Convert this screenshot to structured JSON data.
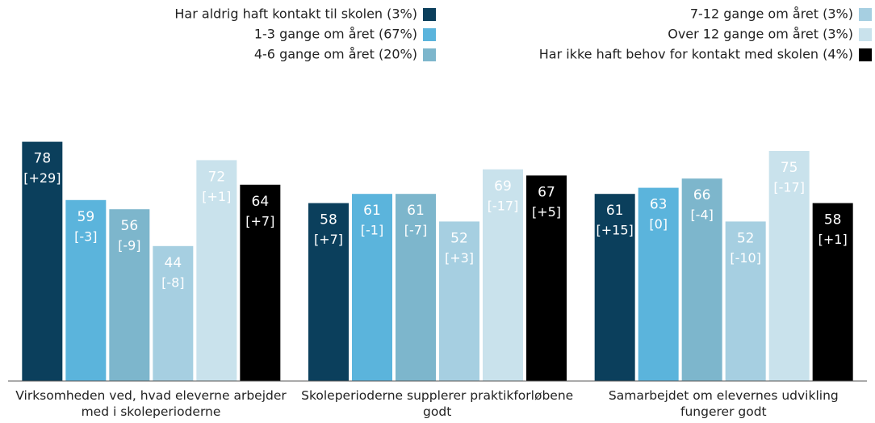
{
  "chart_data": {
    "type": "bar",
    "categories": [
      "Virksomheden ved, hvad eleverne arbejder med i skoleperioderne",
      "Skoleperioderne supplerer praktikforløbene godt",
      "Samarbejdet om elevernes udvikling fungerer godt"
    ],
    "ylim": [
      0,
      100
    ],
    "series": [
      {
        "name": "Har aldrig haft kontakt til skolen (3%)",
        "color": "#0b3f5c",
        "values": [
          78,
          58,
          61
        ],
        "change_labels": [
          "[+29]",
          "[+7]",
          "[+15]"
        ]
      },
      {
        "name": "1-3 gange om året (67%)",
        "color": "#5bb4dc",
        "values": [
          59,
          61,
          63
        ],
        "change_labels": [
          "[-3]",
          "[-1]",
          "[0]"
        ]
      },
      {
        "name": "4-6 gange om året (20%)",
        "color": "#7db6cc",
        "values": [
          56,
          61,
          66
        ],
        "change_labels": [
          "[-9]",
          "[-7]",
          "[-4]"
        ]
      },
      {
        "name": "7-12 gange om året (3%)",
        "color": "#a6cfe1",
        "values": [
          44,
          52,
          52
        ],
        "change_labels": [
          "[-8]",
          "[+3]",
          "[-10]"
        ]
      },
      {
        "name": "Over 12 gange om året (3%)",
        "color": "#c9e2ec",
        "values": [
          72,
          69,
          75
        ],
        "change_labels": [
          "[+1]",
          "[-17]",
          "[-17]"
        ]
      },
      {
        "name": "Har ikke haft behov for kontakt med skolen (4%)",
        "color": "#000000",
        "values": [
          64,
          67,
          58
        ],
        "change_labels": [
          "[+7]",
          "[+5]",
          "[+1]"
        ]
      }
    ]
  }
}
